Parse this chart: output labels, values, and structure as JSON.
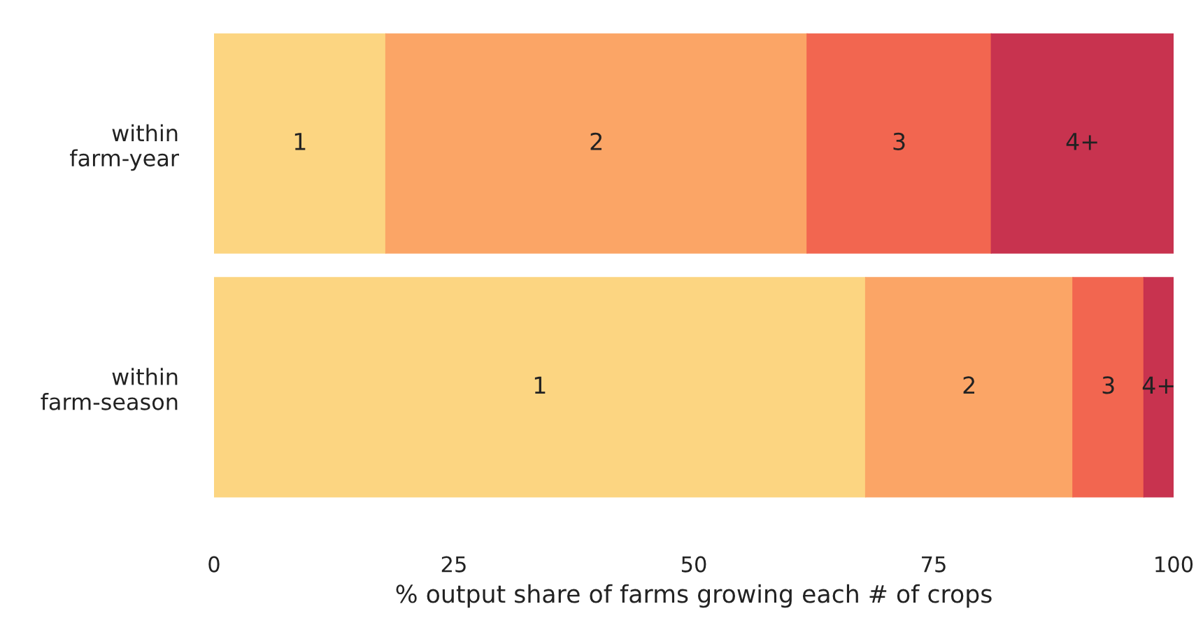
{
  "chart_data": {
    "type": "bar",
    "orientation": "horizontal",
    "stacked": true,
    "categories": [
      "within\nfarm-year",
      "within\nfarm-season"
    ],
    "xlabel": "% output share of farms growing each # of crops",
    "xlim": [
      0,
      100
    ],
    "xticks": [
      0,
      25,
      50,
      75,
      100
    ],
    "grid": false,
    "legend": false,
    "series": [
      {
        "name": "1",
        "color": "#fcd581",
        "values": [
          17.9,
          67.9
        ]
      },
      {
        "name": "2",
        "color": "#fba566",
        "values": [
          43.9,
          21.6
        ]
      },
      {
        "name": "3",
        "color": "#f26650",
        "values": [
          19.2,
          7.4
        ]
      },
      {
        "name": "4+",
        "color": "#c8334f",
        "values": [
          19.0,
          3.1
        ]
      }
    ]
  }
}
